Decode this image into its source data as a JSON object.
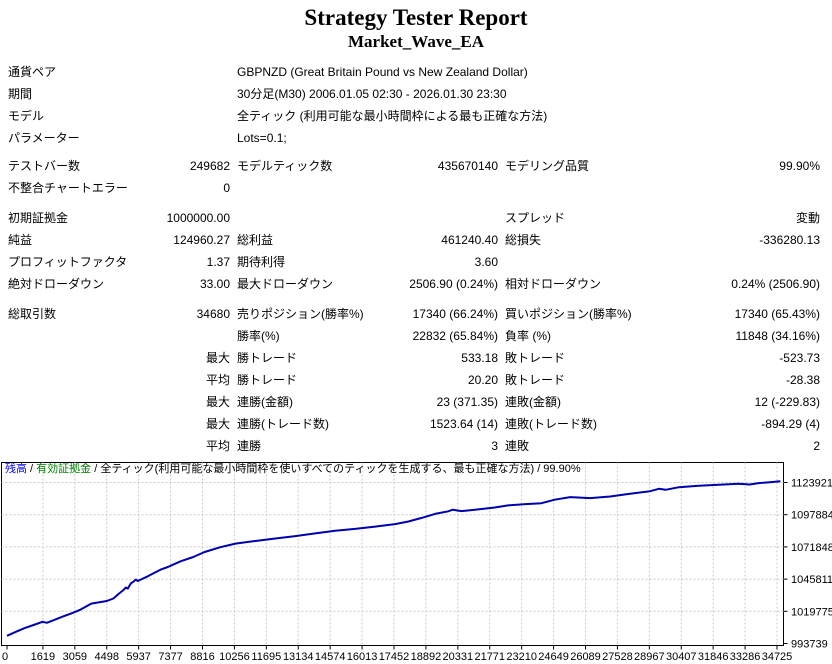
{
  "header": {
    "title": "Strategy Tester Report",
    "subtitle": "Market_Wave_EA"
  },
  "info_rows": [
    {
      "label": "通貨ペア",
      "value": "GBPNZD (Great Britain Pound vs New Zealand Dollar)"
    },
    {
      "label": "期間",
      "value": "30分足(M30) 2006.01.05 02:30 - 2026.01.30 23:30"
    },
    {
      "label": "モデル",
      "value": "全ティック (利用可能な最小時間枠による最も正確な方法)"
    },
    {
      "label": "パラメーター",
      "value": "Lots=0.1;"
    }
  ],
  "stat_groups": [
    {
      "rows": [
        [
          "テストバー数",
          "249682",
          "モデルティック数",
          "435670140",
          "モデリング品質",
          "99.90%"
        ],
        [
          "不整合チャートエラー",
          "0",
          "",
          "",
          "",
          ""
        ]
      ]
    },
    {
      "rows": [
        [
          "初期証拠金",
          "1000000.00",
          "",
          "",
          "スプレッド",
          "変動"
        ],
        [
          "純益",
          "124960.27",
          "総利益",
          "461240.40",
          "総損失",
          "-336280.13"
        ],
        [
          "プロフィットファクタ",
          "1.37",
          "期待利得",
          "3.60",
          "",
          ""
        ],
        [
          "絶対ドローダウン",
          "33.00",
          "最大ドローダウン",
          "2506.90 (0.24%)",
          "相対ドローダウン",
          "0.24% (2506.90)"
        ]
      ]
    },
    {
      "rows": [
        [
          "総取引数",
          "34680",
          "売りポジション(勝率%)",
          "17340 (66.24%)",
          "買いポジション(勝率%)",
          "17340 (65.43%)"
        ],
        [
          "",
          "",
          "勝率(%)",
          "22832 (65.84%)",
          "負率 (%)",
          "11848 (34.16%)"
        ],
        [
          "",
          "最大",
          "勝トレード",
          "533.18",
          "敗トレード",
          "-523.73"
        ],
        [
          "",
          "平均",
          "勝トレード",
          "20.20",
          "敗トレード",
          "-28.38"
        ],
        [
          "",
          "最大",
          "連勝(金額)",
          "23 (371.35)",
          "連敗(金額)",
          "12 (-229.83)"
        ],
        [
          "",
          "最大",
          "連勝(トレード数)",
          "1523.64 (14)",
          "連敗(トレード数)",
          "-894.29 (4)"
        ],
        [
          "",
          "平均",
          "連勝",
          "3",
          "連敗",
          "2"
        ]
      ]
    }
  ],
  "legend": {
    "balance_label": "残高",
    "sep1": " / ",
    "equity_label": "有効証拠金",
    "rest": " / 全ティック(利用可能な最小時間枠を使いすべてのティックを生成する、最も正確な方法) / 99.90%"
  },
  "colors": {
    "balance_legend": "#0000ff",
    "equity_legend": "#008000",
    "curve": "#0000aa",
    "grid": "#c8c8c8",
    "border": "#000000"
  },
  "chart_data": {
    "type": "line",
    "xlabel": "",
    "ylabel": "",
    "x_ticks": [
      0,
      1619,
      3059,
      4498,
      5937,
      7377,
      8816,
      10256,
      11695,
      13134,
      14574,
      16013,
      17452,
      18892,
      20331,
      21771,
      23210,
      24649,
      26089,
      27528,
      28967,
      30407,
      31846,
      33286,
      34725
    ],
    "y_ticks": [
      1123921,
      1097884,
      1071848,
      1045811,
      1019775,
      993739
    ],
    "x_range": [
      0,
      34900
    ],
    "y_range_top_value": 1123921,
    "y_range_bottom_value": 993739,
    "grid": "dashed",
    "legend_position": "top-left-inside",
    "series": [
      {
        "name": "残高",
        "points": [
          [
            0,
            1000000
          ],
          [
            400,
            1003200
          ],
          [
            800,
            1006200
          ],
          [
            1200,
            1008700
          ],
          [
            1600,
            1011300
          ],
          [
            1800,
            1010500
          ],
          [
            2100,
            1012600
          ],
          [
            2500,
            1015400
          ],
          [
            2900,
            1018100
          ],
          [
            3300,
            1021000
          ],
          [
            3800,
            1026000
          ],
          [
            4100,
            1026900
          ],
          [
            4500,
            1028100
          ],
          [
            4800,
            1030100
          ],
          [
            5050,
            1034100
          ],
          [
            5270,
            1037300
          ],
          [
            5360,
            1039000
          ],
          [
            5450,
            1038100
          ],
          [
            5580,
            1042200
          ],
          [
            5720,
            1044000
          ],
          [
            5810,
            1045400
          ],
          [
            5900,
            1044300
          ],
          [
            6030,
            1045400
          ],
          [
            6350,
            1048100
          ],
          [
            6620,
            1050700
          ],
          [
            6930,
            1053500
          ],
          [
            7250,
            1055600
          ],
          [
            7520,
            1057800
          ],
          [
            7830,
            1060200
          ],
          [
            8400,
            1063700
          ],
          [
            8910,
            1067700
          ],
          [
            9600,
            1071500
          ],
          [
            10300,
            1074500
          ],
          [
            11200,
            1076600
          ],
          [
            12100,
            1078600
          ],
          [
            13000,
            1080600
          ],
          [
            13900,
            1082800
          ],
          [
            14800,
            1084900
          ],
          [
            15700,
            1086400
          ],
          [
            16600,
            1088300
          ],
          [
            17500,
            1090300
          ],
          [
            18100,
            1092400
          ],
          [
            18700,
            1095300
          ],
          [
            19300,
            1098500
          ],
          [
            19900,
            1100600
          ],
          [
            20100,
            1101900
          ],
          [
            20500,
            1100800
          ],
          [
            21100,
            1101900
          ],
          [
            22000,
            1103700
          ],
          [
            22600,
            1105400
          ],
          [
            23300,
            1106300
          ],
          [
            24100,
            1107200
          ],
          [
            24700,
            1110000
          ],
          [
            25400,
            1112100
          ],
          [
            26300,
            1111300
          ],
          [
            27200,
            1112600
          ],
          [
            28100,
            1114800
          ],
          [
            29000,
            1116900
          ],
          [
            29400,
            1118800
          ],
          [
            29700,
            1118000
          ],
          [
            30300,
            1120100
          ],
          [
            31200,
            1121300
          ],
          [
            32100,
            1122100
          ],
          [
            33000,
            1122900
          ],
          [
            33500,
            1122300
          ],
          [
            33900,
            1123400
          ],
          [
            34400,
            1124200
          ],
          [
            34880,
            1124960
          ]
        ]
      }
    ]
  }
}
